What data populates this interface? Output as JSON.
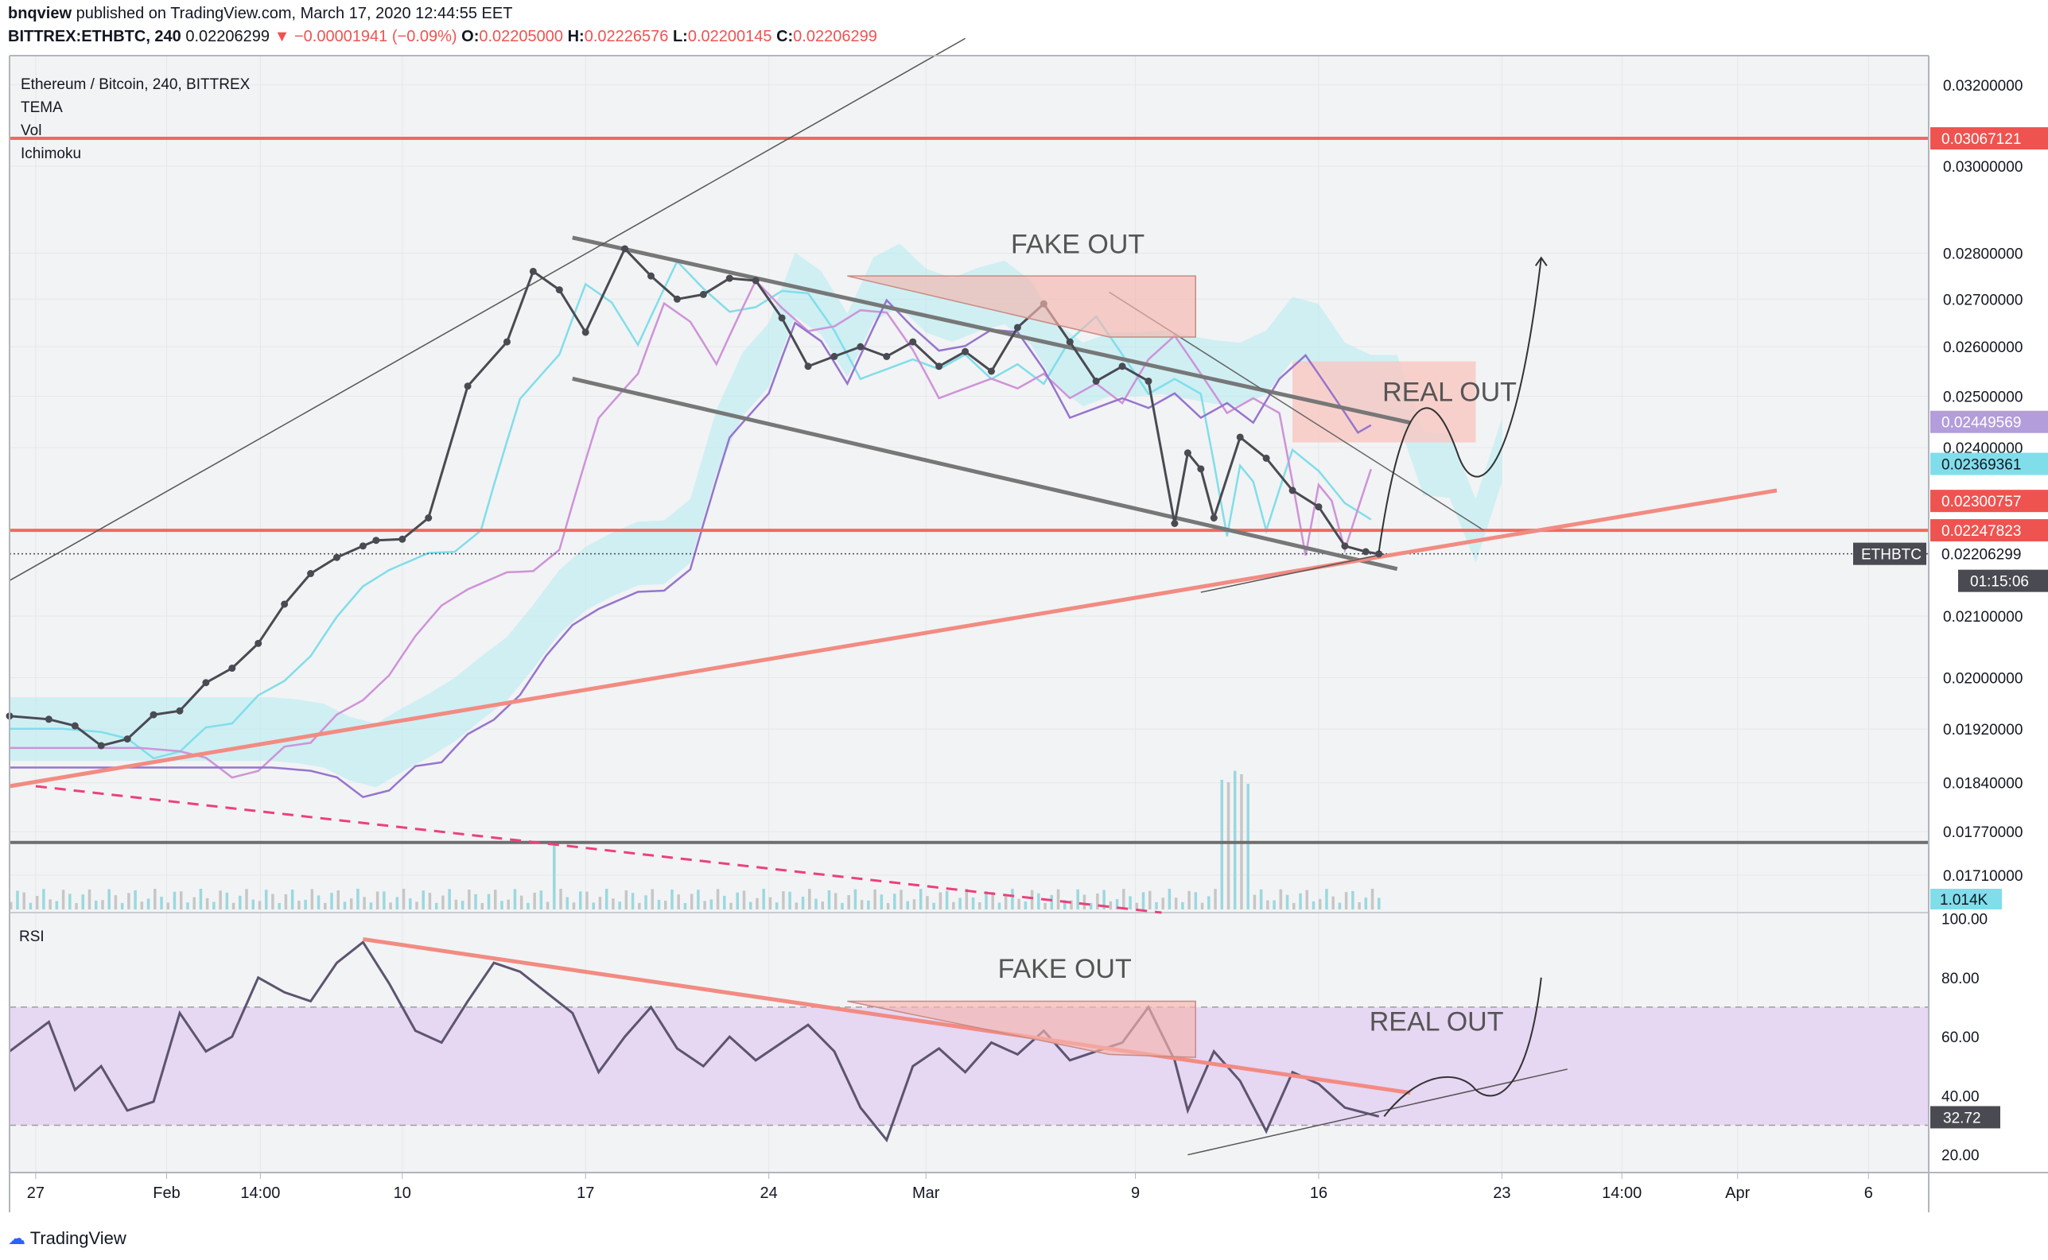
{
  "header": {
    "publisher": "bnqview",
    "published_text": "published on TradingView.com, March 17, 2020 12:44:55 EET",
    "symbol": "BITTREX:ETHBTC, 240",
    "last": "0.02206299",
    "change": "▼ −0.00001941 (−0.09%)",
    "o_label": "O:",
    "o": "0.02205000",
    "h_label": "H:",
    "h": "0.02226576",
    "l_label": "L:",
    "l": "0.02200145",
    "c_label": "C:",
    "c": "0.02206299"
  },
  "legend": {
    "title": "Ethereum / Bitcoin, 240, BITTREX",
    "items": [
      "TEMA",
      "Vol",
      "Ichimoku"
    ]
  },
  "rsi_label": "RSI",
  "annotations": {
    "fake_out_main": "FAKE OUT",
    "real_out_main": "REAL OUT",
    "fake_out_rsi": "FAKE OUT",
    "real_out_rsi": "REAL OUT"
  },
  "price_axis": {
    "ticks": [
      {
        "label": "0.03200000",
        "value": 0.032
      },
      {
        "label": "0.03000000",
        "value": 0.03
      },
      {
        "label": "0.02800000",
        "value": 0.028
      },
      {
        "label": "0.02700000",
        "value": 0.027
      },
      {
        "label": "0.02600000",
        "value": 0.026
      },
      {
        "label": "0.02500000",
        "value": 0.025
      },
      {
        "label": "0.02400000",
        "value": 0.024
      },
      {
        "label": "0.02100000",
        "value": 0.021
      },
      {
        "label": "0.02000000",
        "value": 0.02
      },
      {
        "label": "0.01920000",
        "value": 0.0192
      },
      {
        "label": "0.01840000",
        "value": 0.0184
      },
      {
        "label": "0.01770000",
        "value": 0.0177
      },
      {
        "label": "0.01710000",
        "value": 0.0171
      }
    ],
    "badges": [
      {
        "label": "0.03067121",
        "value": 0.03067121,
        "color": "#ef5350",
        "fg": "#ffffff"
      },
      {
        "label": "0.02449569",
        "value": 0.02449569,
        "color": "#b39ddb",
        "fg": "#ffffff"
      },
      {
        "label": "0.02369361",
        "value": 0.02369361,
        "color": "#80deea",
        "fg": "#131722"
      },
      {
        "label": "0.02300757",
        "value": 0.02300757,
        "color": "#ef5350",
        "fg": "#ffffff"
      },
      {
        "label": "0.02247823",
        "value": 0.02247823,
        "color": "#ef5350",
        "fg": "#ffffff"
      },
      {
        "label": "0.02206299",
        "value": 0.02206299,
        "color": "#ffffff",
        "fg": "#131722"
      }
    ],
    "symbol_tag": "ETHBTC",
    "countdown": "01:15:06",
    "volume_badge": "1.014K"
  },
  "rsi_axis": {
    "ticks": [
      {
        "label": "100.00",
        "value": 100
      },
      {
        "label": "80.00",
        "value": 80
      },
      {
        "label": "60.00",
        "value": 60
      },
      {
        "label": "40.00",
        "value": 40
      },
      {
        "label": "20.00",
        "value": 20
      }
    ],
    "badge": "32.72",
    "badge_value": 32.72
  },
  "time_axis": [
    {
      "label": "27",
      "t": 0
    },
    {
      "label": "Feb",
      "t": 5
    },
    {
      "label": "14:00",
      "t": 8.58
    },
    {
      "label": "10",
      "t": 14
    },
    {
      "label": "17",
      "t": 21
    },
    {
      "label": "24",
      "t": 28
    },
    {
      "label": "Mar",
      "t": 34
    },
    {
      "label": "9",
      "t": 42
    },
    {
      "label": "16",
      "t": 49
    },
    {
      "label": "23",
      "t": 56
    },
    {
      "label": "14:00",
      "t": 60.58
    },
    {
      "label": "Apr",
      "t": 65
    },
    {
      "label": "6",
      "t": 70
    }
  ],
  "footer": {
    "brand": "TradingView"
  },
  "colors": {
    "price_line": "#4a4a52",
    "support_red": "#f28b82",
    "hline_red": "#f06a5f",
    "hline_gray": "#6e6e6e",
    "cloud_fill": "#b2ebf2",
    "rsi_band": "#e6d7f3",
    "rsi_line": "#5c5470"
  },
  "chart_data": {
    "type": "line",
    "title": "Ethereum / Bitcoin, 240, BITTREX",
    "x_unit": "days since Jan 27, 2020",
    "xlim": [
      -1.0,
      72.3
    ],
    "ylim": [
      0.0166,
      0.03275
    ],
    "price_series": {
      "name": "ETHBTC close (approx.)",
      "x": [
        -1.0,
        0.5,
        1.5,
        2.5,
        3.5,
        4.5,
        5.5,
        6.5,
        7.5,
        8.5,
        9.5,
        10.5,
        11.5,
        12.5,
        13.0,
        14.0,
        15.0,
        16.5,
        18.0,
        19.0,
        20.0,
        21.0,
        22.5,
        23.5,
        24.5,
        25.5,
        26.5,
        27.5,
        28.5,
        29.5,
        30.5,
        31.5,
        32.5,
        33.5,
        34.5,
        35.5,
        36.5,
        37.5,
        38.5,
        39.5,
        40.5,
        41.5,
        42.5,
        43.5,
        44.0,
        44.5,
        45.0,
        46.0,
        47.0,
        48.0,
        49.0,
        50.0,
        50.8,
        51.3
      ],
      "y": [
        0.0194,
        0.01935,
        0.01925,
        0.01895,
        0.01905,
        0.01942,
        0.01948,
        0.01992,
        0.02015,
        0.02055,
        0.0212,
        0.02172,
        0.022,
        0.0222,
        0.0223,
        0.02232,
        0.0227,
        0.0252,
        0.0261,
        0.0276,
        0.0272,
        0.0263,
        0.0281,
        0.0275,
        0.027,
        0.0271,
        0.02745,
        0.0274,
        0.0266,
        0.0256,
        0.0258,
        0.026,
        0.0258,
        0.0261,
        0.0256,
        0.0259,
        0.0255,
        0.0264,
        0.0269,
        0.0261,
        0.0253,
        0.0256,
        0.0253,
        0.0226,
        0.0239,
        0.0236,
        0.0227,
        0.0242,
        0.0238,
        0.0232,
        0.0229,
        0.0222,
        0.0221,
        0.02206
      ]
    },
    "horizontal_levels": [
      {
        "name": "resistance",
        "value": 0.03067121
      },
      {
        "name": "support",
        "value": 0.02247823
      },
      {
        "name": "long-term level",
        "value": 0.01755
      }
    ],
    "trendlines": [
      {
        "name": "channel top",
        "from": [
          20.5,
          0.02835
        ],
        "to": [
          52.5,
          0.02448
        ]
      },
      {
        "name": "channel bottom",
        "from": [
          20.5,
          0.02535
        ],
        "to": [
          52.0,
          0.0218
        ]
      },
      {
        "name": "rising support",
        "from": [
          -1.0,
          0.01835
        ],
        "to": [
          66.5,
          0.0232
        ]
      },
      {
        "name": "dashed decline",
        "from": [
          0.0,
          0.01835
        ],
        "to": [
          43.0,
          0.0166
        ]
      }
    ],
    "rsi_series": {
      "name": "RSI",
      "ylim": [
        14,
        102
      ],
      "band": [
        30,
        70
      ],
      "x": [
        -1.0,
        0.5,
        1.5,
        2.5,
        3.5,
        4.5,
        5.5,
        6.5,
        7.5,
        8.5,
        9.5,
        10.5,
        11.5,
        12.5,
        13.5,
        14.5,
        15.5,
        16.5,
        17.5,
        18.5,
        19.5,
        20.5,
        21.5,
        22.5,
        23.5,
        24.5,
        25.5,
        26.5,
        27.5,
        28.5,
        29.5,
        30.5,
        31.5,
        32.5,
        33.5,
        34.5,
        35.5,
        36.5,
        37.5,
        38.5,
        39.5,
        40.5,
        41.5,
        42.5,
        43.5,
        44.0,
        45.0,
        46.0,
        47.0,
        48.0,
        49.0,
        50.0,
        51.3
      ],
      "y": [
        55,
        65,
        42,
        50,
        35,
        38,
        68,
        55,
        60,
        80,
        75,
        72,
        85,
        92,
        78,
        62,
        58,
        72,
        85,
        82,
        75,
        68,
        48,
        60,
        70,
        56,
        50,
        60,
        52,
        58,
        64,
        55,
        36,
        25,
        50,
        56,
        48,
        58,
        54,
        62,
        52,
        55,
        58,
        70,
        52,
        35,
        55,
        45,
        28,
        48,
        44,
        36,
        33
      ]
    }
  }
}
